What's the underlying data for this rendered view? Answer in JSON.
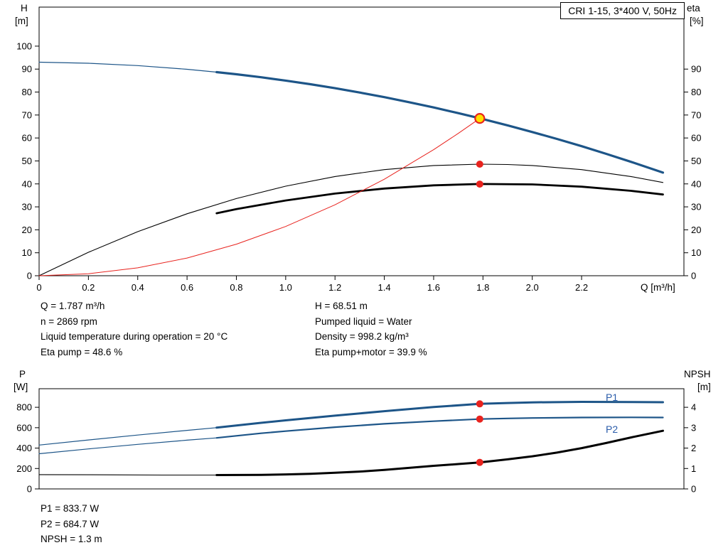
{
  "title_box": "CRI 1-15, 3*400 V, 50Hz",
  "colors": {
    "blue": "#1d5588",
    "black": "#000000",
    "red": "#e8231e",
    "duty_fill": "#ffe000",
    "frame": "#000000",
    "label_blue": "#2a5caa"
  },
  "axis_labels": {
    "top_left_1": "H",
    "top_left_2": "[m]",
    "top_right_1": "eta",
    "top_right_2": "[%]",
    "x": "Q [m³/h]",
    "bottom_left_1": "P",
    "bottom_left_2": "[W]",
    "bottom_right_1": "NPSH",
    "bottom_right_2": "[m]"
  },
  "curve_labels": {
    "p1": "P1",
    "p2": "P2"
  },
  "info_top_left": [
    "Q = 1.787 m³/h",
    "n = 2869 rpm",
    "Liquid temperature during operation = 20 °C",
    "Eta pump = 48.6 %"
  ],
  "info_top_right": [
    "H = 68.51 m",
    "Pumped liquid = Water",
    "Density = 998.2 kg/m³",
    "Eta pump+motor = 39.9 %"
  ],
  "info_bottom": [
    "P1 = 833.7 W",
    "P2 = 684.7 W",
    "NPSH = 1.3 m"
  ],
  "chart_data": [
    {
      "type": "line",
      "title": "CRI 1-15, 3*400 V, 50Hz",
      "xlabel": "Q [m³/h]",
      "ylabel_left": "H [m]",
      "ylabel_right": "eta [%]",
      "xlim": [
        0,
        2.615
      ],
      "ylim_left": [
        0,
        117
      ],
      "ylim_right": [
        0,
        117
      ],
      "left_ticks": {
        "values": [
          0,
          10,
          20,
          30,
          40,
          50,
          60,
          70,
          80,
          90,
          100
        ],
        "labels": [
          "0",
          "10",
          "20",
          "30",
          "40",
          "50",
          "60",
          "70",
          "80",
          "90",
          "100"
        ]
      },
      "right_ticks": {
        "values": [
          0,
          10,
          20,
          30,
          40,
          50,
          60,
          70,
          80,
          90
        ],
        "labels": [
          "0",
          "10",
          "20",
          "30",
          "40",
          "50",
          "60",
          "70",
          "80",
          "90"
        ]
      },
      "x_ticks": {
        "values": [
          0,
          0.2,
          0.4,
          0.6,
          0.8,
          1.0,
          1.2,
          1.4,
          1.6,
          1.8,
          2.0,
          2.2
        ],
        "labels": [
          "0",
          "0.2",
          "0.4",
          "0.6",
          "0.8",
          "1.0",
          "1.2",
          "1.4",
          "1.6",
          "1.8",
          "2.0",
          "2.2"
        ]
      },
      "series": [
        {
          "name": "h-curve-low-flow",
          "axis": "left",
          "color": "blue",
          "width": 1.2,
          "points": [
            [
              0,
              93
            ],
            [
              0.2,
              92.55
            ],
            [
              0.4,
              91.53
            ],
            [
              0.6,
              89.93
            ],
            [
              0.72,
              88.69
            ]
          ]
        },
        {
          "name": "h-curve",
          "axis": "left",
          "color": "blue",
          "width": 3.2,
          "points": [
            [
              0.72,
              88.69
            ],
            [
              0.8,
              87.75
            ],
            [
              0.9,
              86.45
            ],
            [
              1.0,
              85.0
            ],
            [
              1.1,
              83.41
            ],
            [
              1.2,
              81.67
            ],
            [
              1.3,
              79.79
            ],
            [
              1.4,
              77.77
            ],
            [
              1.5,
              75.6
            ],
            [
              1.6,
              73.29
            ],
            [
              1.7,
              70.83
            ],
            [
              1.787,
              68.58
            ],
            [
              1.9,
              65.49
            ],
            [
              2.0,
              62.6
            ],
            [
              2.1,
              59.57
            ],
            [
              2.2,
              56.43
            ],
            [
              2.3,
              53.07
            ],
            [
              2.4,
              49.61
            ],
            [
              2.53,
              44.9
            ]
          ]
        },
        {
          "name": "eta-pump-curve",
          "axis": "right",
          "color": "black",
          "width": 1.1,
          "points": [
            [
              0,
              0
            ],
            [
              0.2,
              10.2
            ],
            [
              0.4,
              19.2
            ],
            [
              0.6,
              27.0
            ],
            [
              0.8,
              33.6
            ],
            [
              1.0,
              39.0
            ],
            [
              1.2,
              43.2
            ],
            [
              1.4,
              46.2
            ],
            [
              1.6,
              48.0
            ],
            [
              1.787,
              48.6
            ],
            [
              1.9,
              48.45
            ],
            [
              2.0,
              48.0
            ],
            [
              2.2,
              46.2
            ],
            [
              2.4,
              43.2
            ],
            [
              2.53,
              40.6
            ]
          ]
        },
        {
          "name": "eta-pump-motor-curve",
          "axis": "right",
          "color": "black",
          "width": 2.8,
          "points": [
            [
              0.72,
              27.2
            ],
            [
              0.8,
              29.0
            ],
            [
              1.0,
              32.78
            ],
            [
              1.2,
              35.78
            ],
            [
              1.4,
              37.98
            ],
            [
              1.6,
              39.38
            ],
            [
              1.787,
              39.96
            ],
            [
              2.0,
              39.78
            ],
            [
              2.2,
              38.78
            ],
            [
              2.4,
              36.98
            ],
            [
              2.53,
              35.38
            ]
          ]
        },
        {
          "name": "system-curve",
          "axis": "left",
          "color": "red",
          "width": 1,
          "points": [
            [
              0,
              0
            ],
            [
              0.2,
              0.86
            ],
            [
              0.4,
              3.43
            ],
            [
              0.6,
              7.72
            ],
            [
              0.8,
              13.73
            ],
            [
              1.0,
              21.45
            ],
            [
              1.2,
              30.89
            ],
            [
              1.4,
              42.04
            ],
            [
              1.6,
              54.91
            ],
            [
              1.7,
              61.99
            ],
            [
              1.787,
              68.51
            ]
          ]
        }
      ],
      "markers": [
        {
          "name": "eta-pump-point",
          "type": "dot",
          "axis": "right",
          "x": 1.787,
          "y": 48.6
        },
        {
          "name": "eta-pump-motor-point",
          "type": "dot",
          "axis": "right",
          "x": 1.787,
          "y": 39.9
        },
        {
          "name": "duty-point",
          "type": "duty",
          "axis": "left",
          "x": 1.787,
          "y": 68.51
        }
      ]
    },
    {
      "type": "line",
      "title": "",
      "xlabel": "",
      "ylabel_left": "P [W]",
      "ylabel_right": "NPSH [m]",
      "xlim": [
        0,
        2.615
      ],
      "ylim_left": [
        0,
        982
      ],
      "ylim_right": [
        0,
        4.91
      ],
      "left_ticks": {
        "values": [
          0,
          200,
          400,
          600,
          800
        ],
        "labels": [
          "0",
          "200",
          "400",
          "600",
          "800"
        ]
      },
      "right_ticks": {
        "values": [
          0,
          1,
          2,
          3,
          4
        ],
        "labels": [
          "0",
          "1",
          "2",
          "3",
          "4"
        ]
      },
      "x_ticks": {
        "values": [],
        "labels": []
      },
      "series": [
        {
          "name": "p1-curve-low-flow",
          "axis": "left",
          "color": "blue",
          "width": 1.2,
          "points": [
            [
              0,
              430
            ],
            [
              0.2,
              480
            ],
            [
              0.4,
              528
            ],
            [
              0.6,
              574
            ],
            [
              0.72,
              600
            ]
          ]
        },
        {
          "name": "p2-curve-low-flow",
          "axis": "left",
          "color": "blue",
          "width": 1.2,
          "points": [
            [
              0,
              345
            ],
            [
              0.2,
              392
            ],
            [
              0.4,
              437
            ],
            [
              0.6,
              478
            ],
            [
              0.72,
              500
            ]
          ]
        },
        {
          "name": "p1-curve",
          "axis": "left",
          "color": "blue",
          "width": 3.0,
          "points": [
            [
              0.72,
              600
            ],
            [
              0.9,
              648
            ],
            [
              1.0,
              672
            ],
            [
              1.2,
              718
            ],
            [
              1.4,
              762
            ],
            [
              1.6,
              802
            ],
            [
              1.787,
              833.7
            ],
            [
              1.9,
              842
            ],
            [
              2.0,
              848
            ],
            [
              2.2,
              853
            ],
            [
              2.4,
              852
            ],
            [
              2.53,
              850
            ]
          ]
        },
        {
          "name": "p2-curve",
          "axis": "left",
          "color": "blue",
          "width": 2.2,
          "points": [
            [
              0.72,
              500
            ],
            [
              0.9,
              545
            ],
            [
              1.0,
              566
            ],
            [
              1.2,
              605
            ],
            [
              1.4,
              638
            ],
            [
              1.6,
              664
            ],
            [
              1.787,
              684.7
            ],
            [
              1.9,
              691
            ],
            [
              2.0,
              695
            ],
            [
              2.2,
              700
            ],
            [
              2.4,
              701
            ],
            [
              2.53,
              700
            ]
          ]
        },
        {
          "name": "npsh-curve-low-flow",
          "axis": "right",
          "color": "black",
          "width": 1.1,
          "points": [
            [
              0,
              0.7
            ],
            [
              0.3,
              0.69
            ],
            [
              0.5,
              0.68
            ],
            [
              0.72,
              0.68
            ]
          ]
        },
        {
          "name": "npsh-curve",
          "axis": "right",
          "color": "black",
          "width": 3.0,
          "points": [
            [
              0.72,
              0.68
            ],
            [
              0.9,
              0.69
            ],
            [
              1.0,
              0.71
            ],
            [
              1.1,
              0.74
            ],
            [
              1.2,
              0.79
            ],
            [
              1.3,
              0.85
            ],
            [
              1.4,
              0.93
            ],
            [
              1.5,
              1.03
            ],
            [
              1.6,
              1.13
            ],
            [
              1.7,
              1.22
            ],
            [
              1.787,
              1.3
            ],
            [
              1.9,
              1.45
            ],
            [
              2.0,
              1.6
            ],
            [
              2.1,
              1.78
            ],
            [
              2.2,
              2.0
            ],
            [
              2.3,
              2.25
            ],
            [
              2.4,
              2.52
            ],
            [
              2.53,
              2.85
            ]
          ]
        }
      ],
      "markers": [
        {
          "name": "p1-point",
          "type": "dot",
          "axis": "left",
          "x": 1.787,
          "y": 833.7
        },
        {
          "name": "p2-point",
          "type": "dot",
          "axis": "left",
          "x": 1.787,
          "y": 684.7
        },
        {
          "name": "npsh-point",
          "type": "dot",
          "axis": "right",
          "x": 1.787,
          "y": 1.3
        }
      ]
    }
  ]
}
